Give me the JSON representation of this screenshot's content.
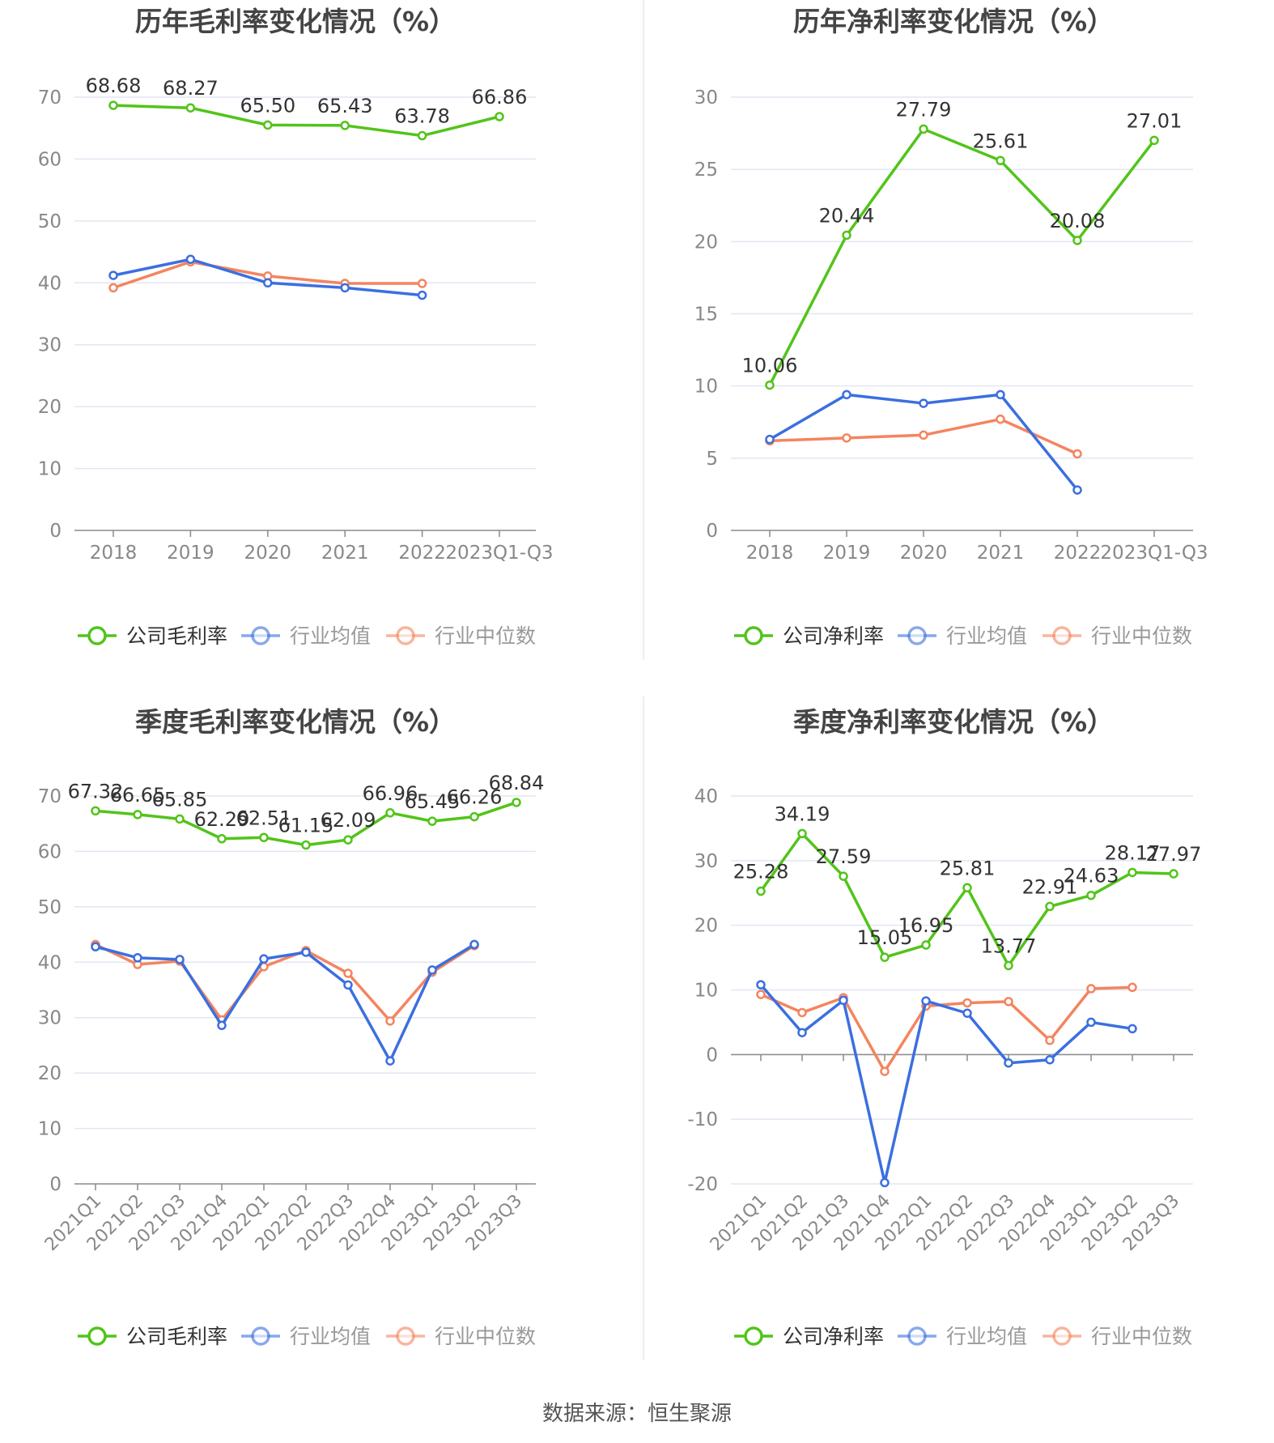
{
  "colors": {
    "company": "#52c41a",
    "avg": "#3b6fe0",
    "median": "#f4845f",
    "grid": "#e3e6f2",
    "axis": "#8a8a8a",
    "tick_text": "#888888",
    "title": "#444444",
    "label": "#333333"
  },
  "source": "数据来源：恒生聚源",
  "chart_data": [
    {
      "id": "annual-gross",
      "type": "line",
      "title": "历年毛利率变化情况（%）",
      "categories": [
        "2018",
        "2019",
        "2020",
        "2021",
        "2022",
        "2023Q1-Q3"
      ],
      "ylim": [
        0,
        70
      ],
      "yticks": [
        0,
        10,
        20,
        30,
        40,
        50,
        60,
        70
      ],
      "rotate_x": false,
      "grid": true,
      "legend_position": "bottom",
      "series": [
        {
          "name": "公司毛利率",
          "key": "company",
          "values": [
            68.68,
            68.27,
            65.5,
            65.43,
            63.78,
            66.86
          ],
          "labels": [
            "68.68",
            "68.27",
            "65.50",
            "65.43",
            "63.78",
            "66.86"
          ]
        },
        {
          "name": "行业均值",
          "key": "avg",
          "values": [
            41.2,
            43.8,
            40.0,
            39.2,
            38.0,
            null
          ]
        },
        {
          "name": "行业中位数",
          "key": "median",
          "values": [
            39.2,
            43.4,
            41.1,
            39.9,
            39.9,
            null
          ]
        }
      ]
    },
    {
      "id": "annual-net",
      "type": "line",
      "title": "历年净利率变化情况（%）",
      "categories": [
        "2018",
        "2019",
        "2020",
        "2021",
        "2022",
        "2023Q1-Q3"
      ],
      "ylim": [
        0,
        30
      ],
      "yticks": [
        0,
        5,
        10,
        15,
        20,
        25,
        30
      ],
      "rotate_x": false,
      "grid": true,
      "legend_position": "bottom",
      "series": [
        {
          "name": "公司净利率",
          "key": "company",
          "values": [
            10.06,
            20.44,
            27.79,
            25.61,
            20.08,
            27.01
          ],
          "labels": [
            "10.06",
            "20.44",
            "27.79",
            "25.61",
            "20.08",
            "27.01"
          ]
        },
        {
          "name": "行业均值",
          "key": "avg",
          "values": [
            6.3,
            9.4,
            8.8,
            9.4,
            2.8,
            null
          ]
        },
        {
          "name": "行业中位数",
          "key": "median",
          "values": [
            6.2,
            6.4,
            6.6,
            7.7,
            5.3,
            null
          ]
        }
      ]
    },
    {
      "id": "quarterly-gross",
      "type": "line",
      "title": "季度毛利率变化情况（%）",
      "categories": [
        "2021Q1",
        "2021Q2",
        "2021Q3",
        "2021Q4",
        "2022Q1",
        "2022Q2",
        "2022Q3",
        "2022Q4",
        "2023Q1",
        "2023Q2",
        "2023Q3"
      ],
      "ylim": [
        0,
        70
      ],
      "yticks": [
        0,
        10,
        20,
        30,
        40,
        50,
        60,
        70
      ],
      "rotate_x": true,
      "grid": true,
      "legend_position": "bottom",
      "series": [
        {
          "name": "公司毛利率",
          "key": "company",
          "values": [
            67.32,
            66.65,
            65.85,
            62.29,
            62.51,
            61.15,
            62.09,
            66.96,
            65.45,
            66.26,
            68.84
          ],
          "labels": [
            "67.32",
            "66.65",
            "65.85",
            "62.29",
            "62.51",
            "61.15",
            "62.09",
            "66.96",
            "65.45",
            "66.26",
            "68.84"
          ]
        },
        {
          "name": "行业均值",
          "key": "avg",
          "values": [
            42.8,
            40.8,
            40.5,
            28.6,
            40.6,
            41.8,
            35.9,
            22.2,
            38.6,
            43.2,
            null
          ]
        },
        {
          "name": "行业中位数",
          "key": "median",
          "values": [
            43.2,
            39.6,
            40.2,
            29.6,
            39.2,
            42.1,
            38.0,
            29.4,
            38.2,
            43.0,
            null
          ]
        }
      ]
    },
    {
      "id": "quarterly-net",
      "type": "line",
      "title": "季度净利率变化情况（%）",
      "categories": [
        "2021Q1",
        "2021Q2",
        "2021Q3",
        "2021Q4",
        "2022Q1",
        "2022Q2",
        "2022Q3",
        "2022Q4",
        "2023Q1",
        "2023Q2",
        "2023Q3"
      ],
      "ylim": [
        -20,
        40
      ],
      "yticks": [
        -20,
        -10,
        0,
        10,
        20,
        30,
        40
      ],
      "rotate_x": true,
      "grid": true,
      "legend_position": "bottom",
      "series": [
        {
          "name": "公司净利率",
          "key": "company",
          "values": [
            25.28,
            34.19,
            27.59,
            15.05,
            16.95,
            25.81,
            13.77,
            22.91,
            24.63,
            28.17,
            27.97
          ],
          "labels": [
            "25.28",
            "34.19",
            "27.59",
            "15.05",
            "16.95",
            "25.81",
            "13.77",
            "22.91",
            "24.63",
            "28.17",
            "27.97"
          ]
        },
        {
          "name": "行业均值",
          "key": "avg",
          "values": [
            10.8,
            3.4,
            8.4,
            -19.8,
            8.3,
            6.4,
            -1.3,
            -0.8,
            5.0,
            4.0,
            null
          ]
        },
        {
          "name": "行业中位数",
          "key": "median",
          "values": [
            9.3,
            6.5,
            8.8,
            -2.6,
            7.5,
            8.0,
            8.2,
            2.2,
            10.2,
            10.4,
            null
          ]
        }
      ]
    }
  ]
}
